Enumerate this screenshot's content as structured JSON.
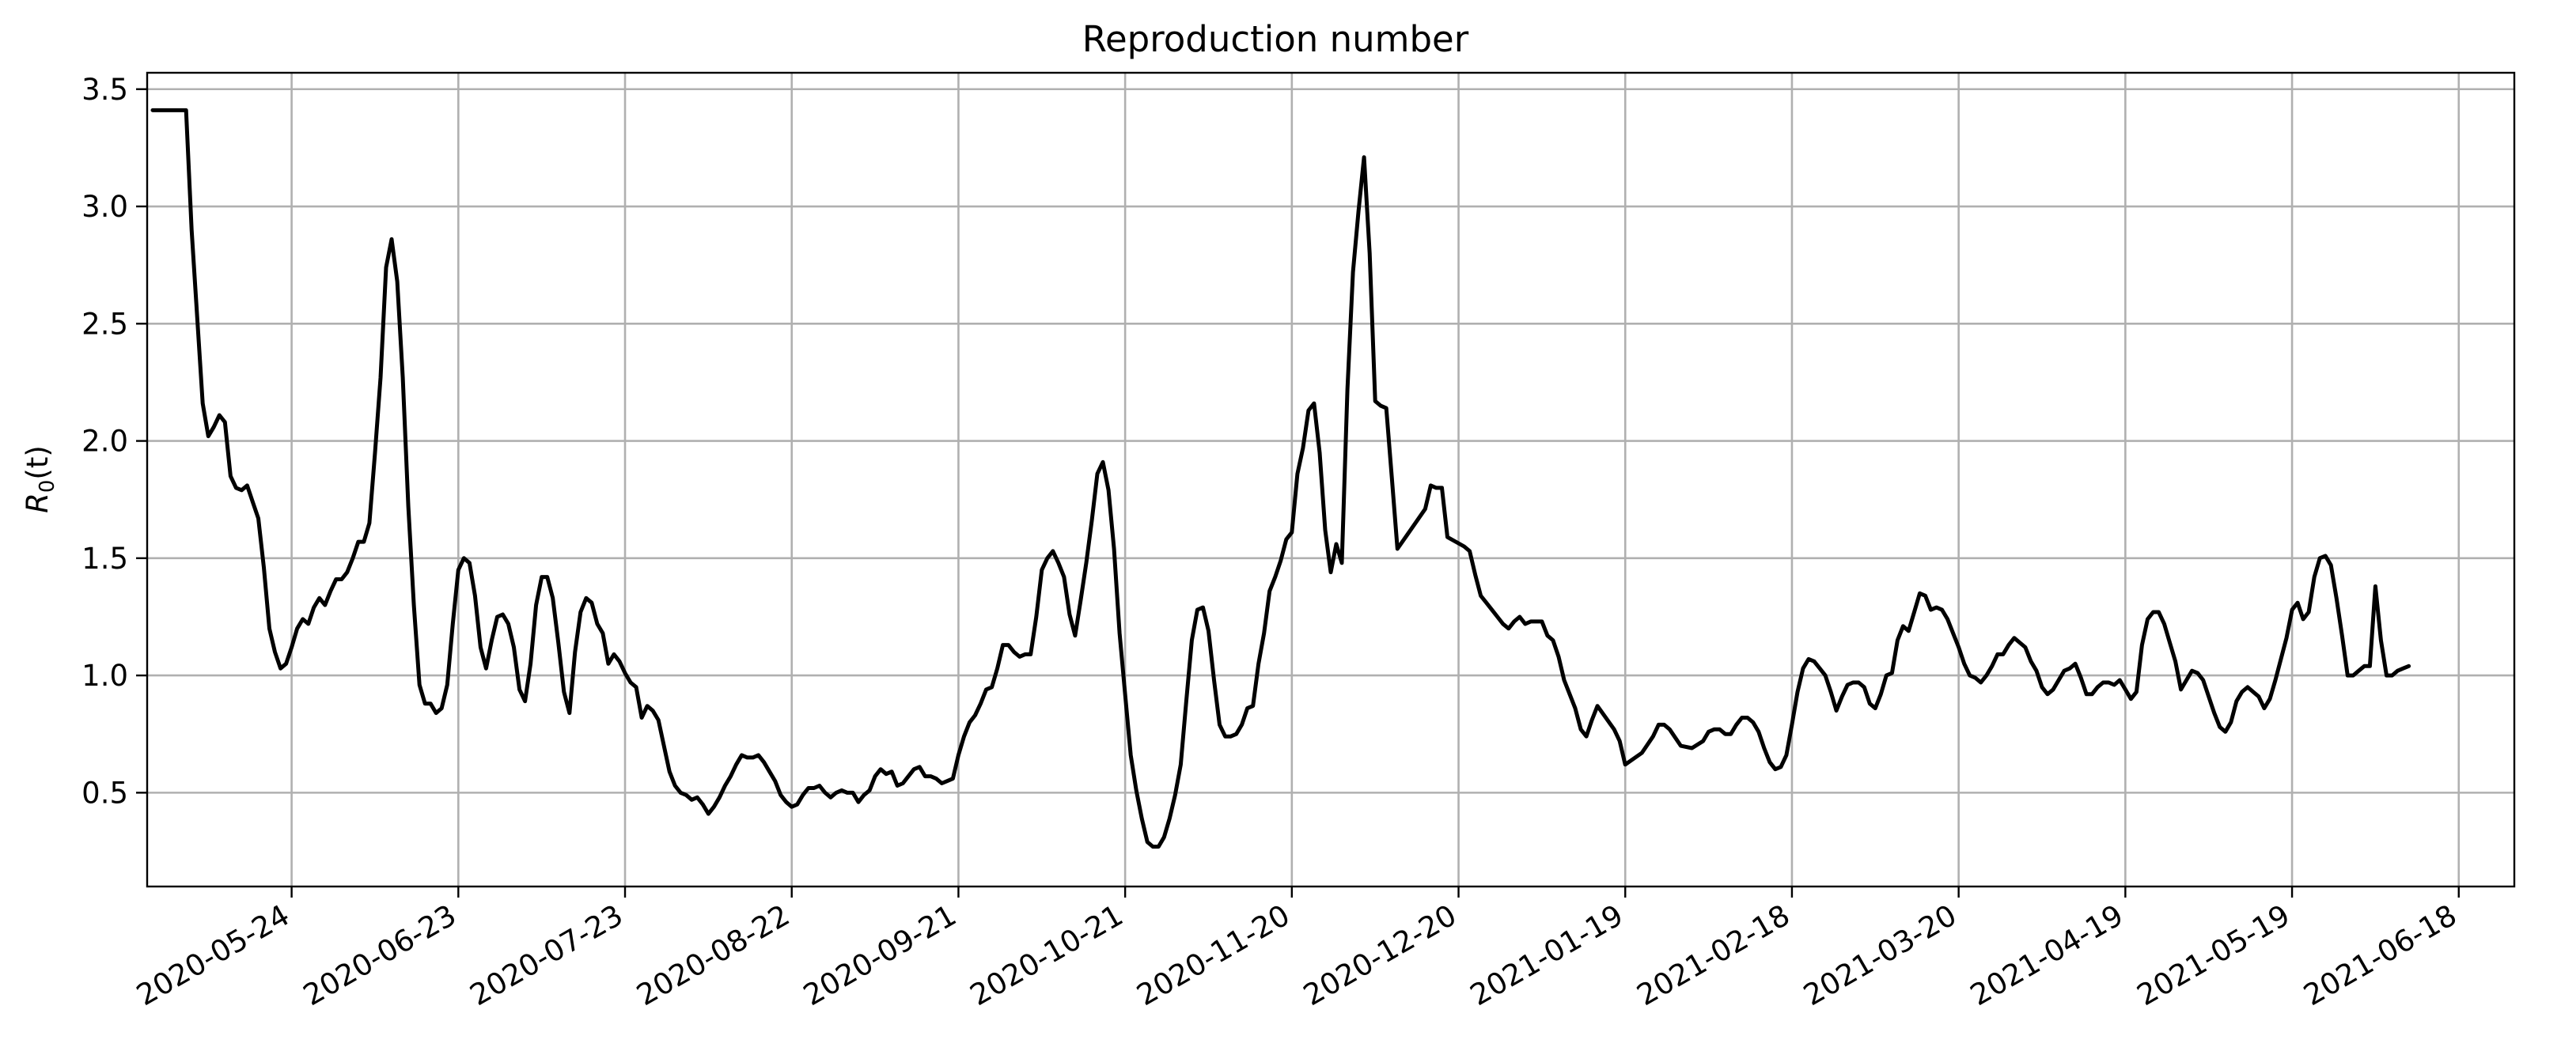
{
  "chart_data": {
    "type": "line",
    "title": "Reproduction number",
    "xlabel": "",
    "ylabel": "R0(t)",
    "ylabel_parts": {
      "symbol": "R",
      "subscript": "0",
      "argument": "(t)"
    },
    "xlim": [
      "2020-04-28",
      "2021-06-28"
    ],
    "ylim": [
      0.1,
      3.57
    ],
    "grid": true,
    "legend": "none",
    "colors": {
      "line": "#000000",
      "grid": "#b0b0b0"
    },
    "x_ticks": [
      "2020-05-24",
      "2020-06-23",
      "2020-07-23",
      "2020-08-22",
      "2020-09-21",
      "2020-10-21",
      "2020-11-20",
      "2020-12-20",
      "2021-01-19",
      "2021-02-18",
      "2021-03-20",
      "2021-04-19",
      "2021-05-19",
      "2021-06-18"
    ],
    "y_ticks": [
      "0.5",
      "1.0",
      "1.5",
      "2.0",
      "2.5",
      "3.0",
      "3.5"
    ],
    "series": [
      {
        "x": [
          "2020-04-29",
          "2020-05-05",
          "2020-05-06",
          "2020-05-08",
          "2020-05-09",
          "2020-05-10",
          "2020-05-11",
          "2020-05-12",
          "2020-05-13",
          "2020-05-14",
          "2020-05-15",
          "2020-05-16",
          "2020-05-17",
          "2020-05-18",
          "2020-05-19",
          "2020-05-20",
          "2020-05-21",
          "2020-05-22",
          "2020-05-23",
          "2020-05-24",
          "2020-05-25",
          "2020-05-26",
          "2020-05-27",
          "2020-05-28",
          "2020-05-29",
          "2020-05-30",
          "2020-05-31",
          "2020-06-01",
          "2020-06-02",
          "2020-06-03",
          "2020-06-04",
          "2020-06-05",
          "2020-06-06",
          "2020-06-07",
          "2020-06-08",
          "2020-06-09",
          "2020-06-10",
          "2020-06-11",
          "2020-06-12",
          "2020-06-13",
          "2020-06-14",
          "2020-06-15",
          "2020-06-16",
          "2020-06-17",
          "2020-06-18",
          "2020-06-19",
          "2020-06-20",
          "2020-06-21",
          "2020-06-22",
          "2020-06-23",
          "2020-06-24",
          "2020-06-25",
          "2020-06-26",
          "2020-06-27",
          "2020-06-28",
          "2020-06-29",
          "2020-06-30",
          "2020-07-01",
          "2020-07-02",
          "2020-07-03",
          "2020-07-04",
          "2020-07-05",
          "2020-07-06",
          "2020-07-07",
          "2020-07-08",
          "2020-07-09",
          "2020-07-10",
          "2020-07-11",
          "2020-07-12",
          "2020-07-13",
          "2020-07-14",
          "2020-07-15",
          "2020-07-16",
          "2020-07-17",
          "2020-07-18",
          "2020-07-19",
          "2020-07-20",
          "2020-07-21",
          "2020-07-22",
          "2020-07-23",
          "2020-07-24",
          "2020-07-25",
          "2020-07-26",
          "2020-07-27",
          "2020-07-28",
          "2020-07-29",
          "2020-07-30",
          "2020-07-31",
          "2020-08-01",
          "2020-08-02",
          "2020-08-03",
          "2020-08-04",
          "2020-08-05",
          "2020-08-06",
          "2020-08-07",
          "2020-08-08",
          "2020-08-09",
          "2020-08-10",
          "2020-08-11",
          "2020-08-12",
          "2020-08-13",
          "2020-08-14",
          "2020-08-15",
          "2020-08-16",
          "2020-08-17",
          "2020-08-18",
          "2020-08-19",
          "2020-08-20",
          "2020-08-21",
          "2020-08-22",
          "2020-08-23",
          "2020-08-24",
          "2020-08-25",
          "2020-08-26",
          "2020-08-27",
          "2020-08-28",
          "2020-08-29",
          "2020-08-30",
          "2020-08-31",
          "2020-09-01",
          "2020-09-02",
          "2020-09-03",
          "2020-09-04",
          "2020-09-05",
          "2020-09-06",
          "2020-09-07",
          "2020-09-08",
          "2020-09-09",
          "2020-09-10",
          "2020-09-11",
          "2020-09-12",
          "2020-09-13",
          "2020-09-14",
          "2020-09-15",
          "2020-09-16",
          "2020-09-17",
          "2020-09-18",
          "2020-09-19",
          "2020-09-20",
          "2020-09-21",
          "2020-09-22",
          "2020-09-23",
          "2020-09-24",
          "2020-09-25",
          "2020-09-26",
          "2020-09-27",
          "2020-09-28",
          "2020-09-29",
          "2020-09-30",
          "2020-10-01",
          "2020-10-02",
          "2020-10-03",
          "2020-10-04",
          "2020-10-05",
          "2020-10-06",
          "2020-10-07",
          "2020-10-08",
          "2020-10-09",
          "2020-10-10",
          "2020-10-11",
          "2020-10-12",
          "2020-10-13",
          "2020-10-14",
          "2020-10-15",
          "2020-10-16",
          "2020-10-17",
          "2020-10-18",
          "2020-10-19",
          "2020-10-20",
          "2020-10-21",
          "2020-10-22",
          "2020-10-23",
          "2020-10-24",
          "2020-10-25",
          "2020-10-26",
          "2020-10-27",
          "2020-10-28",
          "2020-10-29",
          "2020-10-30",
          "2020-10-31",
          "2020-11-01",
          "2020-11-02",
          "2020-11-03",
          "2020-11-04",
          "2020-11-05",
          "2020-11-06",
          "2020-11-07",
          "2020-11-08",
          "2020-11-09",
          "2020-11-10",
          "2020-11-11",
          "2020-11-12",
          "2020-11-13",
          "2020-11-14",
          "2020-11-15",
          "2020-11-16",
          "2020-11-17",
          "2020-11-18",
          "2020-11-19",
          "2020-11-20",
          "2020-11-21",
          "2020-11-22",
          "2020-11-23",
          "2020-11-24",
          "2020-11-25",
          "2020-11-26",
          "2020-11-27",
          "2020-11-28",
          "2020-11-29",
          "2020-11-30",
          "2020-12-01",
          "2020-12-02",
          "2020-12-03",
          "2020-12-04",
          "2020-12-05",
          "2020-12-06",
          "2020-12-07",
          "2020-12-08",
          "2020-12-09",
          "2020-12-14",
          "2020-12-15",
          "2020-12-16",
          "2020-12-17",
          "2020-12-18",
          "2020-12-21",
          "2020-12-22",
          "2020-12-23",
          "2020-12-24",
          "2020-12-25",
          "2020-12-26",
          "2020-12-27",
          "2020-12-28",
          "2020-12-29",
          "2020-12-30",
          "2020-12-31",
          "2021-01-01",
          "2021-01-02",
          "2021-01-03",
          "2021-01-04",
          "2021-01-05",
          "2021-01-06",
          "2021-01-07",
          "2021-01-08",
          "2021-01-09",
          "2021-01-10",
          "2021-01-11",
          "2021-01-12",
          "2021-01-13",
          "2021-01-14",
          "2021-01-17",
          "2021-01-18",
          "2021-01-19",
          "2021-01-22",
          "2021-01-24",
          "2021-01-25",
          "2021-01-26",
          "2021-01-27",
          "2021-01-29",
          "2021-01-31",
          "2021-02-02",
          "2021-02-03",
          "2021-02-04",
          "2021-02-05",
          "2021-02-06",
          "2021-02-07",
          "2021-02-08",
          "2021-02-09",
          "2021-02-10",
          "2021-02-11",
          "2021-02-12",
          "2021-02-13",
          "2021-02-14",
          "2021-02-15",
          "2021-02-16",
          "2021-02-17",
          "2021-02-18",
          "2021-02-19",
          "2021-02-20",
          "2021-02-21",
          "2021-02-22",
          "2021-02-23",
          "2021-02-24",
          "2021-02-25",
          "2021-02-26",
          "2021-02-27",
          "2021-02-28",
          "2021-03-01",
          "2021-03-02",
          "2021-03-03",
          "2021-03-04",
          "2021-03-05",
          "2021-03-06",
          "2021-03-07",
          "2021-03-08",
          "2021-03-09",
          "2021-03-10",
          "2021-03-11",
          "2021-03-12",
          "2021-03-13",
          "2021-03-14",
          "2021-03-15",
          "2021-03-16",
          "2021-03-17",
          "2021-03-18",
          "2021-03-19",
          "2021-03-20",
          "2021-03-21",
          "2021-03-22",
          "2021-03-23",
          "2021-03-24",
          "2021-03-25",
          "2021-03-26",
          "2021-03-27",
          "2021-03-28",
          "2021-03-29",
          "2021-03-30",
          "2021-03-31",
          "2021-04-01",
          "2021-04-02",
          "2021-04-03",
          "2021-04-04",
          "2021-04-05",
          "2021-04-06",
          "2021-04-07",
          "2021-04-08",
          "2021-04-09",
          "2021-04-10",
          "2021-04-11",
          "2021-04-12",
          "2021-04-13",
          "2021-04-14",
          "2021-04-15",
          "2021-04-16",
          "2021-04-17",
          "2021-04-18",
          "2021-04-19",
          "2021-04-20",
          "2021-04-21",
          "2021-04-22",
          "2021-04-23",
          "2021-04-24",
          "2021-04-25",
          "2021-04-26",
          "2021-04-27",
          "2021-04-28",
          "2021-04-29",
          "2021-04-30",
          "2021-05-01",
          "2021-05-02",
          "2021-05-03",
          "2021-05-04",
          "2021-05-05",
          "2021-05-06",
          "2021-05-07",
          "2021-05-08",
          "2021-05-09",
          "2021-05-10",
          "2021-05-11",
          "2021-05-12",
          "2021-05-13",
          "2021-05-14",
          "2021-05-15",
          "2021-05-16",
          "2021-05-17",
          "2021-05-18",
          "2021-05-19",
          "2021-05-20",
          "2021-05-21",
          "2021-05-22",
          "2021-05-23",
          "2021-05-24",
          "2021-05-25",
          "2021-05-26",
          "2021-05-27",
          "2021-05-28",
          "2021-05-29",
          "2021-05-30",
          "2021-05-31",
          "2021-06-01",
          "2021-06-02",
          "2021-06-03",
          "2021-06-04",
          "2021-06-05",
          "2021-06-06",
          "2021-06-07",
          "2021-06-08",
          "2021-06-09"
        ],
        "y": [
          3.41,
          3.41,
          2.9,
          2.16,
          2.02,
          2.06,
          2.11,
          2.08,
          1.85,
          1.8,
          1.79,
          1.81,
          1.74,
          1.67,
          1.46,
          1.2,
          1.1,
          1.03,
          1.05,
          1.12,
          1.2,
          1.24,
          1.22,
          1.29,
          1.33,
          1.3,
          1.36,
          1.41,
          1.41,
          1.44,
          1.5,
          1.57,
          1.57,
          1.65,
          1.95,
          2.27,
          2.74,
          2.86,
          2.68,
          2.27,
          1.72,
          1.3,
          0.96,
          0.88,
          0.88,
          0.84,
          0.86,
          0.96,
          1.22,
          1.45,
          1.5,
          1.48,
          1.34,
          1.12,
          1.03,
          1.15,
          1.25,
          1.26,
          1.22,
          1.12,
          0.94,
          0.89,
          1.05,
          1.3,
          1.42,
          1.42,
          1.33,
          1.14,
          0.93,
          0.84,
          1.1,
          1.27,
          1.33,
          1.31,
          1.22,
          1.18,
          1.05,
          1.09,
          1.06,
          1.01,
          0.97,
          0.95,
          0.82,
          0.87,
          0.85,
          0.81,
          0.7,
          0.59,
          0.53,
          0.5,
          0.49,
          0.47,
          0.48,
          0.45,
          0.41,
          0.44,
          0.48,
          0.53,
          0.57,
          0.62,
          0.66,
          0.65,
          0.65,
          0.66,
          0.63,
          0.59,
          0.55,
          0.49,
          0.46,
          0.44,
          0.45,
          0.49,
          0.52,
          0.52,
          0.53,
          0.5,
          0.48,
          0.5,
          0.51,
          0.5,
          0.5,
          0.46,
          0.49,
          0.51,
          0.57,
          0.6,
          0.58,
          0.59,
          0.53,
          0.54,
          0.57,
          0.6,
          0.61,
          0.57,
          0.57,
          0.56,
          0.54,
          0.55,
          0.56,
          0.66,
          0.74,
          0.8,
          0.83,
          0.88,
          0.94,
          0.95,
          1.03,
          1.13,
          1.13,
          1.1,
          1.08,
          1.09,
          1.09,
          1.25,
          1.45,
          1.5,
          1.53,
          1.48,
          1.42,
          1.26,
          1.17,
          1.32,
          1.48,
          1.66,
          1.86,
          1.91,
          1.79,
          1.54,
          1.18,
          0.92,
          0.66,
          0.51,
          0.39,
          0.29,
          0.27,
          0.27,
          0.31,
          0.39,
          0.49,
          0.62,
          0.89,
          1.15,
          1.28,
          1.29,
          1.19,
          0.98,
          0.79,
          0.74,
          0.74,
          0.75,
          0.79,
          0.86,
          0.87,
          1.05,
          1.18,
          1.36,
          1.42,
          1.49,
          1.58,
          1.61,
          1.86,
          1.97,
          2.13,
          2.16,
          1.95,
          1.62,
          1.44,
          1.56,
          1.48,
          2.22,
          2.72,
          2.98,
          3.21,
          2.8,
          2.17,
          2.15,
          2.14,
          1.84,
          1.54,
          1.71,
          1.81,
          1.8,
          1.8,
          1.59,
          1.55,
          1.53,
          1.43,
          1.34,
          1.31,
          1.28,
          1.25,
          1.22,
          1.2,
          1.23,
          1.25,
          1.22,
          1.23,
          1.23,
          1.23,
          1.17,
          1.15,
          1.08,
          0.98,
          0.92,
          0.86,
          0.77,
          0.74,
          0.81,
          0.87,
          0.77,
          0.72,
          0.62,
          0.67,
          0.74,
          0.79,
          0.79,
          0.77,
          0.7,
          0.69,
          0.72,
          0.76,
          0.77,
          0.77,
          0.75,
          0.75,
          0.79,
          0.82,
          0.82,
          0.8,
          0.76,
          0.69,
          0.63,
          0.6,
          0.61,
          0.66,
          0.79,
          0.93,
          1.03,
          1.07,
          1.06,
          1.03,
          1.0,
          0.93,
          0.85,
          0.91,
          0.96,
          0.97,
          0.97,
          0.95,
          0.88,
          0.86,
          0.92,
          1.0,
          1.01,
          1.15,
          1.21,
          1.19,
          1.27,
          1.35,
          1.34,
          1.28,
          1.29,
          1.28,
          1.24,
          1.18,
          1.12,
          1.05,
          1.0,
          0.99,
          0.97,
          1.0,
          1.04,
          1.09,
          1.09,
          1.13,
          1.16,
          1.14,
          1.12,
          1.06,
          1.02,
          0.95,
          0.92,
          0.94,
          0.98,
          1.02,
          1.03,
          1.05,
          0.99,
          0.92,
          0.92,
          0.95,
          0.97,
          0.97,
          0.96,
          0.98,
          0.94,
          0.9,
          0.93,
          1.13,
          1.24,
          1.27,
          1.27,
          1.22,
          1.14,
          1.06,
          0.94,
          0.98,
          1.02,
          1.01,
          0.98,
          0.91,
          0.84,
          0.78,
          0.76,
          0.8,
          0.89,
          0.93,
          0.95,
          0.93,
          0.91,
          0.86,
          0.9,
          0.98,
          1.07,
          1.16,
          1.28,
          1.31,
          1.24,
          1.27,
          1.42,
          1.5,
          1.51,
          1.47,
          1.33,
          1.17,
          1.0,
          1.0,
          1.02,
          1.04,
          1.04,
          1.38,
          1.15,
          1.0,
          1.0,
          1.02,
          1.03,
          1.04
        ]
      }
    ]
  }
}
